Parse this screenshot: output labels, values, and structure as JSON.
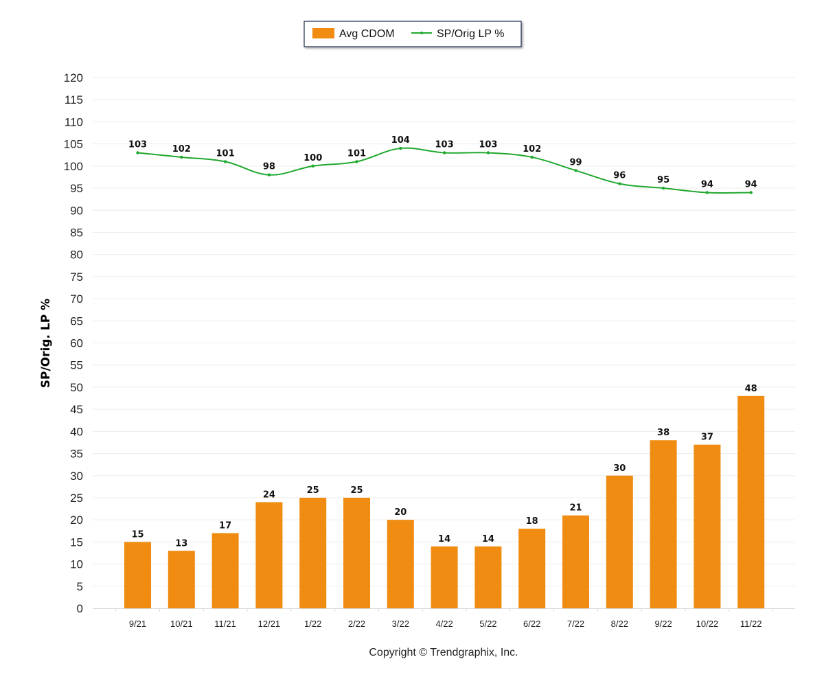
{
  "chart_data": {
    "type": "bar",
    "categories": [
      "9/21",
      "10/21",
      "11/21",
      "12/21",
      "1/22",
      "2/22",
      "3/22",
      "4/22",
      "5/22",
      "6/22",
      "7/22",
      "8/22",
      "9/22",
      "10/22",
      "11/22"
    ],
    "series": [
      {
        "name": "Avg CDOM",
        "type": "bar",
        "color": "#F08C12",
        "values": [
          15,
          13,
          17,
          24,
          25,
          25,
          20,
          14,
          14,
          18,
          21,
          30,
          38,
          37,
          48
        ]
      },
      {
        "name": "SP/Orig LP %",
        "type": "line",
        "color": "#1FA82E",
        "values": [
          103,
          102,
          101,
          98,
          100,
          101,
          104,
          103,
          103,
          102,
          99,
          96,
          95,
          94,
          94
        ]
      }
    ],
    "ylabel": "SP/Orig. LP %",
    "xlabel": "",
    "ylim": [
      0,
      120
    ],
    "yticks": [
      0,
      5,
      10,
      15,
      20,
      25,
      30,
      35,
      40,
      45,
      50,
      55,
      60,
      65,
      70,
      75,
      80,
      85,
      90,
      95,
      100,
      105,
      110,
      115,
      120
    ],
    "grid": true,
    "legend_position": "top-center"
  },
  "footer": {
    "copyright": "Copyright © Trendgraphix, Inc."
  }
}
